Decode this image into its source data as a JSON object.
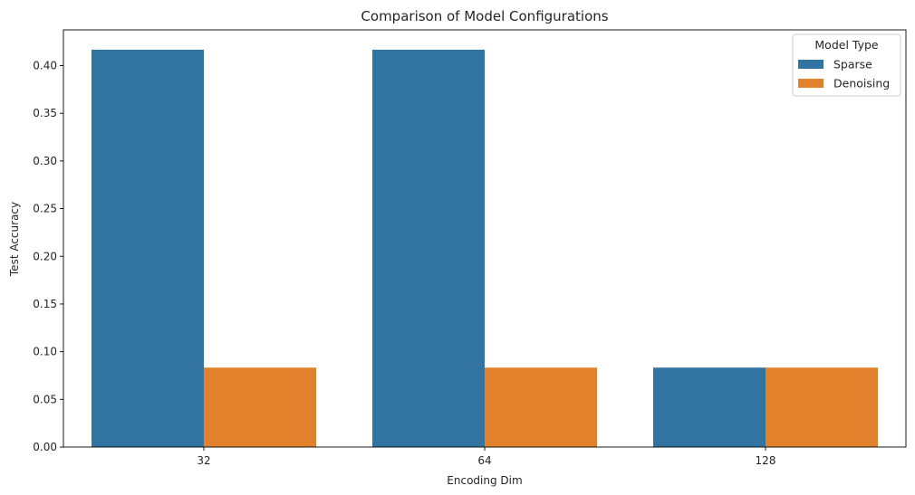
{
  "chart_data": {
    "type": "bar",
    "title": "Comparison of Model Configurations",
    "xlabel": "Encoding Dim",
    "ylabel": "Test Accuracy",
    "categories": [
      "32",
      "64",
      "128"
    ],
    "series": [
      {
        "name": "Sparse",
        "color": "#3274a1",
        "values": [
          0.4167,
          0.4167,
          0.0833
        ]
      },
      {
        "name": "Denoising",
        "color": "#e1812c",
        "values": [
          0.0833,
          0.0833,
          0.0833
        ]
      }
    ],
    "ylim": [
      0,
      0.4375
    ],
    "yticks": [
      "0.00",
      "0.05",
      "0.10",
      "0.15",
      "0.20",
      "0.25",
      "0.30",
      "0.35",
      "0.40"
    ],
    "grid": false,
    "legend": {
      "title": "Model Type",
      "position": "top-right"
    }
  }
}
